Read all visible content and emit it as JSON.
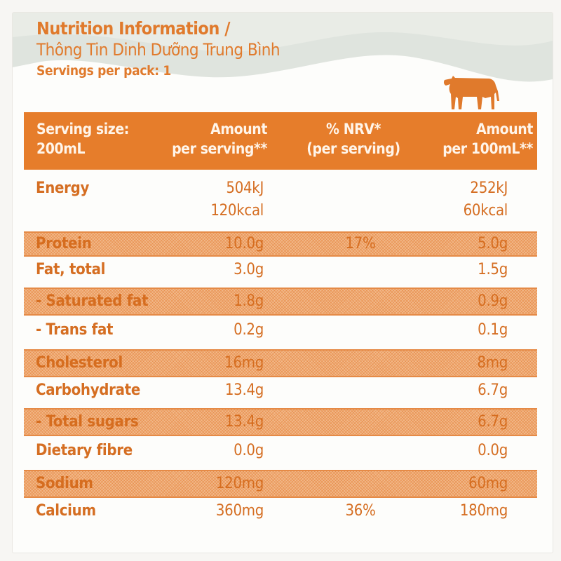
{
  "header": {
    "title": "Nutrition Information /",
    "subtitle": "Thông Tin Dinh Dưỡng Trung Bình",
    "servings": "Servings per pack: 1"
  },
  "columns": {
    "serving_size_line1": "Serving size:",
    "serving_size_line2": "200mL",
    "per_serving_line1": "Amount",
    "per_serving_line2": "per serving**",
    "nrv_line1": "% NRV*",
    "nrv_line2": "(per serving)",
    "per100_line1": "Amount",
    "per100_line2": "per 100mL**"
  },
  "rows": [
    {
      "name": "Energy",
      "per_serving": "504kJ",
      "per_serving_2": "120kcal",
      "nrv": "",
      "per_100ml": "252kJ",
      "per_100ml_2": "60kcal",
      "shaded": false
    },
    {
      "name": "Protein",
      "per_serving": "10.0g",
      "nrv": "17%",
      "per_100ml": "5.0g",
      "shaded": true
    },
    {
      "name": "Fat, total",
      "per_serving": "3.0g",
      "nrv": "",
      "per_100ml": "1.5g",
      "shaded": false
    },
    {
      "name": "- Saturated fat",
      "per_serving": "1.8g",
      "nrv": "",
      "per_100ml": "0.9g",
      "shaded": true
    },
    {
      "name": "- Trans fat",
      "per_serving": "0.2g",
      "nrv": "",
      "per_100ml": "0.1g",
      "shaded": false
    },
    {
      "name": "Cholesterol",
      "per_serving": "16mg",
      "nrv": "",
      "per_100ml": "8mg",
      "shaded": true
    },
    {
      "name": "Carbohydrate",
      "per_serving": "13.4g",
      "nrv": "",
      "per_100ml": "6.7g",
      "shaded": false
    },
    {
      "name": "- Total sugars",
      "per_serving": "13.4g",
      "nrv": "",
      "per_100ml": "6.7g",
      "shaded": true
    },
    {
      "name": "Dietary fibre",
      "per_serving": "0.0g",
      "nrv": "",
      "per_100ml": "0.0g",
      "shaded": false
    },
    {
      "name": "Sodium",
      "per_serving": "120mg",
      "nrv": "",
      "per_100ml": "60mg",
      "shaded": true
    },
    {
      "name": "Calcium",
      "per_serving": "360mg",
      "nrv": "36%",
      "per_100ml": "180mg",
      "shaded": false
    }
  ],
  "colors": {
    "accent": "#e67d2b",
    "shade": "#f2b98a",
    "wave": "#dfe3dc"
  },
  "icons": [
    "cow-icon"
  ]
}
